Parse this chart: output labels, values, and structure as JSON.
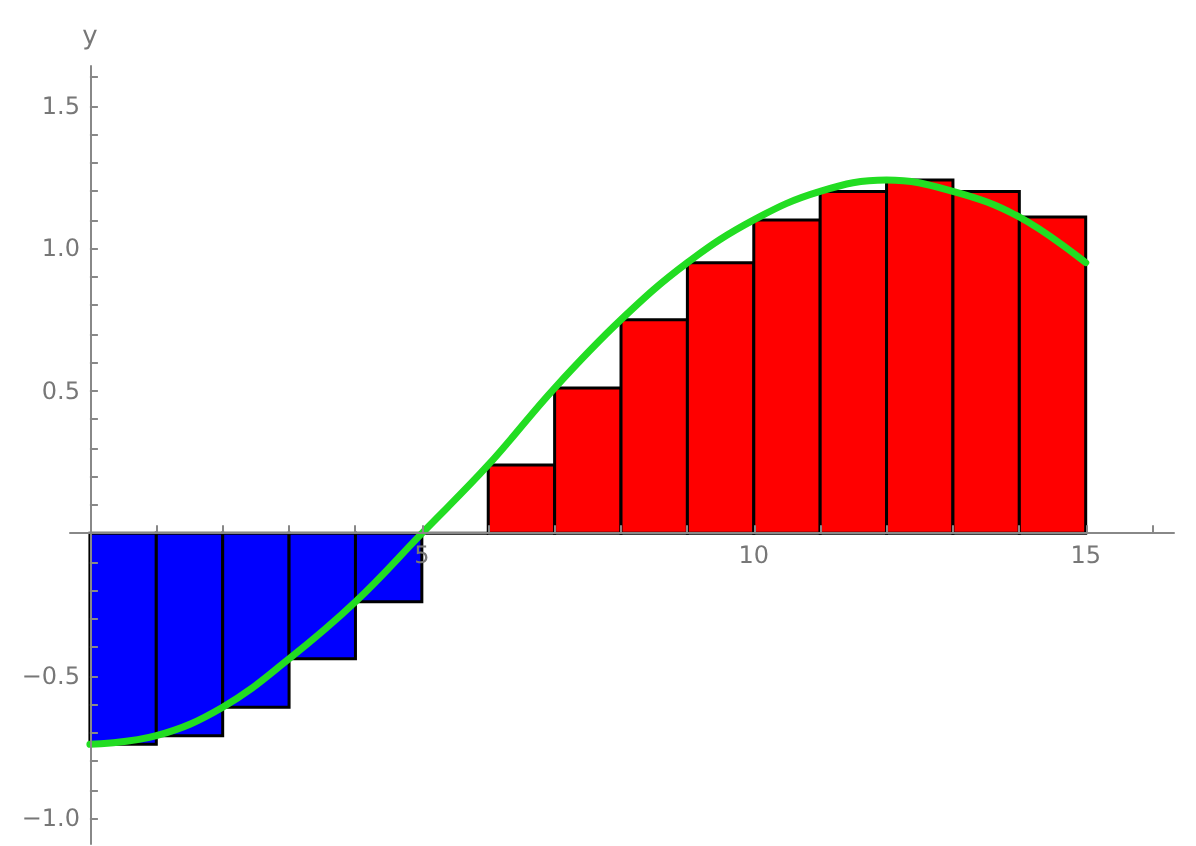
{
  "chart_data": {
    "type": "histogram",
    "ylabel": "y",
    "xlim": [
      -0.3,
      16.33
    ],
    "xticks": [
      {
        "value": 1,
        "label": null
      },
      {
        "value": 2,
        "label": null
      },
      {
        "value": 3,
        "label": null
      },
      {
        "value": 4,
        "label": null
      },
      5,
      {
        "value": 6,
        "label": null
      },
      {
        "value": 7,
        "label": null
      },
      {
        "value": 8,
        "label": null
      },
      {
        "value": 9,
        "label": null
      },
      10,
      {
        "value": 11,
        "label": null
      },
      {
        "value": 12,
        "label": null
      },
      {
        "value": 13,
        "label": null
      },
      {
        "value": 14,
        "label": null
      },
      15,
      {
        "value": 16,
        "label": null
      }
    ],
    "ylim": [
      -1.09,
      1.64
    ],
    "yticks": [
      {
        "value": -1,
        "label": "−1.0"
      },
      {
        "value": -0.9,
        "label": null
      },
      {
        "value": -0.8,
        "label": null
      },
      {
        "value": -0.7,
        "label": null
      },
      {
        "value": -0.6,
        "label": null
      },
      {
        "value": -0.5,
        "label": "−0.5"
      },
      {
        "value": -0.4,
        "label": null
      },
      {
        "value": -0.3,
        "label": null
      },
      {
        "value": -0.2,
        "label": null
      },
      {
        "value": -0.1,
        "label": null
      },
      {
        "value": 0.1,
        "label": null
      },
      {
        "value": 0.2,
        "label": null
      },
      {
        "value": 0.3,
        "label": null
      },
      {
        "value": 0.4,
        "label": null
      },
      0.5,
      {
        "value": 0.6,
        "label": null
      },
      {
        "value": 0.7,
        "label": null
      },
      {
        "value": 0.8,
        "label": null
      },
      {
        "value": 0.9,
        "label": null
      },
      {
        "value": 1,
        "label": "1.0"
      },
      {
        "value": 1.1,
        "label": null
      },
      {
        "value": 1.2,
        "label": null
      },
      {
        "value": 1.3,
        "label": null
      },
      {
        "value": 1.4,
        "label": null
      },
      1.5,
      {
        "value": 1.6,
        "label": null
      }
    ],
    "series": [
      {
        "bins": [
          0,
          1,
          2,
          3,
          4,
          5,
          6,
          7,
          8,
          9,
          10,
          11,
          12,
          13,
          14,
          15
        ],
        "values": [
          -0.74,
          -0.71,
          -0.61,
          -0.44,
          -0.24,
          0,
          0.24,
          0.51,
          0.75,
          0.95,
          1.1,
          1.2,
          1.24,
          1.2,
          1.11
        ],
        "colors": [
          "#0000ff",
          "#0000ff",
          "#0000ff",
          "#0000ff",
          "#0000ff",
          "#000000",
          "#ff0000",
          "#ff0000",
          "#ff0000",
          "#ff0000",
          "#ff0000",
          "#ff0000",
          "#ff0000",
          "#ff0000",
          "#ff0000"
        ]
      },
      {
        "type": "line",
        "x": [
          0,
          1,
          2,
          3,
          4,
          5,
          6,
          7,
          8,
          9,
          10,
          11,
          12,
          13,
          14,
          15
        ],
        "values": [
          -0.74,
          -0.71,
          -0.61,
          -0.44,
          -0.24,
          0,
          0.24,
          0.51,
          0.75,
          0.95,
          1.1,
          1.2,
          1.24,
          1.2,
          1.11,
          0.95
        ],
        "color": "#22dd22"
      }
    ]
  }
}
